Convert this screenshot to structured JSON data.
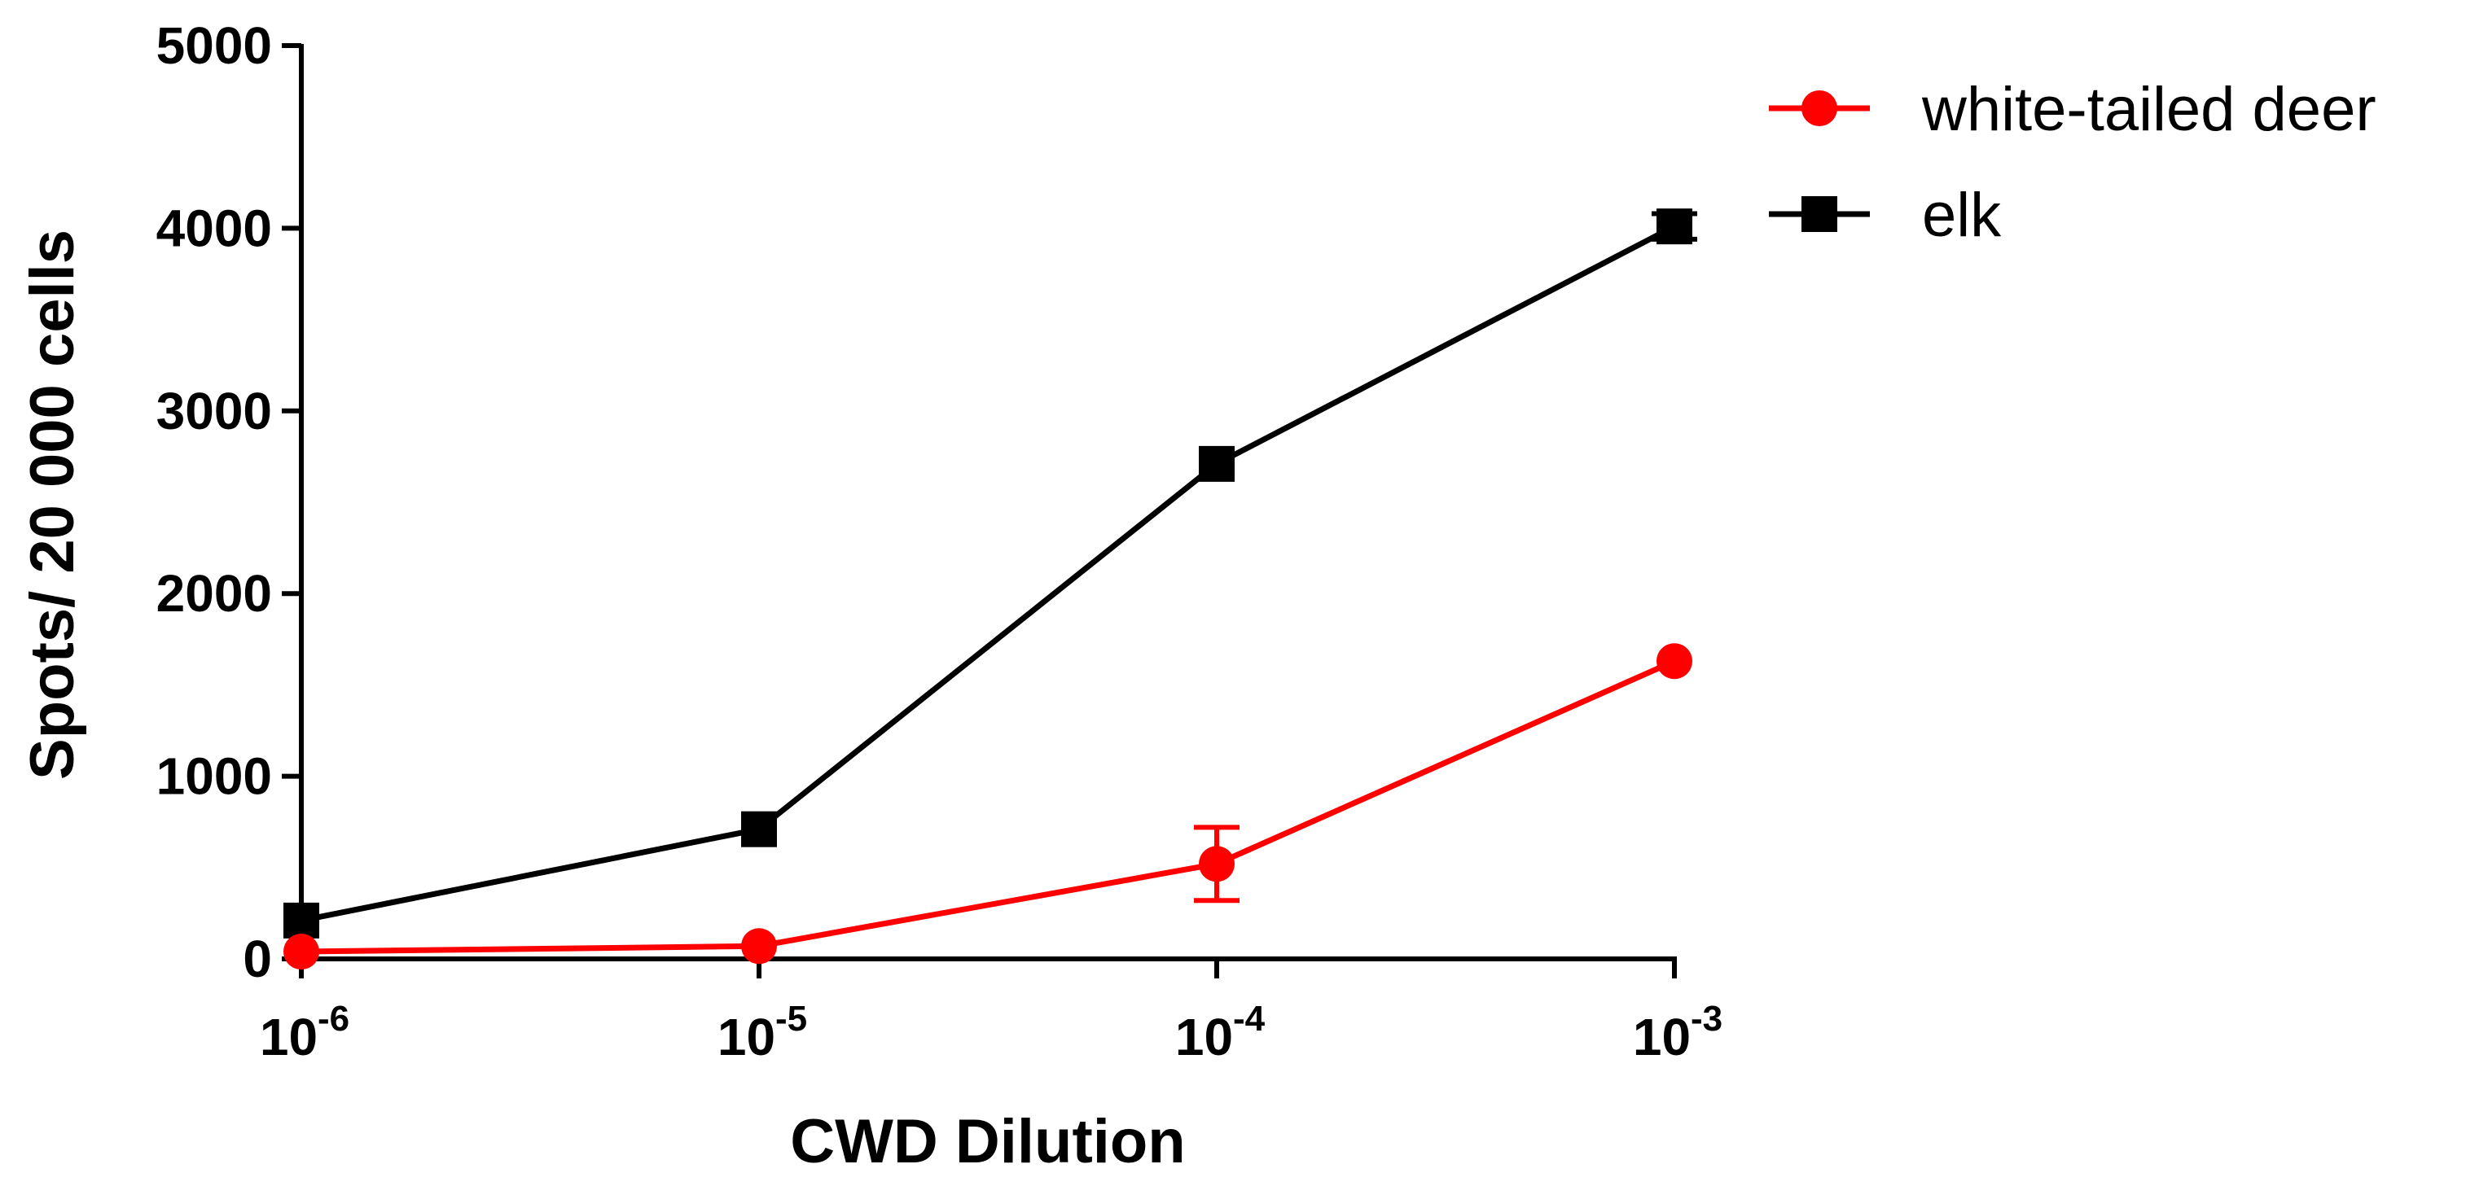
{
  "chart_data": {
    "type": "line",
    "xlabel": "CWD Dilution",
    "ylabel": "Spots/ 20 000 cells",
    "x_scale": "log",
    "x_ticks": [
      {
        "base": "10",
        "exp": "-6"
      },
      {
        "base": "10",
        "exp": "-5"
      },
      {
        "base": "10",
        "exp": "-4"
      },
      {
        "base": "10",
        "exp": "-3"
      }
    ],
    "y_ticks": [
      "0",
      "1000",
      "2000",
      "3000",
      "4000",
      "5000"
    ],
    "ylim": [
      0,
      5000
    ],
    "x": [
      1e-06,
      1e-05,
      0.0001,
      0.001
    ],
    "grid": false,
    "legend_position": "top-right",
    "series": [
      {
        "name": "white-tailed deer",
        "color": "#ff0000",
        "marker": "circle",
        "values": [
          40,
          70,
          520,
          1630
        ],
        "errors": [
          0,
          0,
          200,
          0
        ]
      },
      {
        "name": "elk",
        "color": "#000000",
        "marker": "square",
        "values": [
          210,
          710,
          2710,
          4010
        ],
        "errors": [
          0,
          0,
          0,
          70
        ]
      }
    ]
  }
}
